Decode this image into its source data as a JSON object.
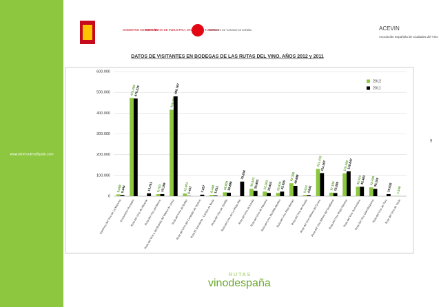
{
  "side_url": "www.wineroutesofspain.com",
  "logos": {
    "gobierno": "GOBIERNO DE ESPAÑA",
    "ministerio": "MINISTERIO DE INDUSTRIA, ENERGÍA Y TURISMO",
    "turismo": "INSTITUTO DE TURISMO DE ESPAÑA",
    "acevin": "ACEVIN",
    "acevin_sub": "Asociación Española de Ciudades del Vino",
    "rutas": "RUTAS",
    "vino": "vinodespaña"
  },
  "page_number": "9",
  "chart_data": {
    "type": "bar",
    "title": "DATOS DE VISITANTES EN BODEGAS DE LAS RUTAS DEL VINO. AÑOS 2012 y 2011",
    "categories": [
      "Caminos del Vino de La Mancha",
      "Enoturismo Penedès",
      "Ruta del Vino de Alicante",
      "Ruta del Vino del Bierzo",
      "Ruta del Vino y del Brandy del Marco de Jerez",
      "Ruta del Vino de Bullas",
      "Ruta del Vino del Condado de Huelva",
      "Ruta El Garnacha - Campo de Borja",
      "Ruta del Vino de Jumilla",
      "Ruta del Vino de La Rioja Alta",
      "Ruta del Vino de Lleida",
      "Ruta del Vino de Navarra",
      "Ruta del Vino Montilla-Moriles",
      "Ruta del Vino Rías Baixas",
      "Ruta del Vino de Rueda",
      "Ruta del Vino Ribera del Duero",
      "Ruta del Vino Ribera del Guadiana",
      "Ruta del Vino Rioja Alavesa",
      "Ruta del Vino Somontano",
      "Ruta del Vino Utiel-Requena",
      "Ruta del Vino de Toro",
      "Ruta del Vino de Yecla"
    ],
    "series": [
      {
        "name": "2012",
        "color": "#8dc63f",
        "values": [
          8668,
          473499,
          null,
          9793,
          416565,
          12901,
          null,
          6448,
          18800,
          null,
          35643,
          22263,
          15930,
          62396,
          5614,
          131470,
          17109,
          110309,
          45554,
          42490,
          null,
          1548
        ],
        "value_labels": [
          "8.668",
          "473.499",
          null,
          "9.793",
          "416.565",
          "12.901",
          null,
          "6.448",
          "18.800",
          null,
          "35.643",
          "22.263",
          "15.930",
          "62.396",
          "5.614",
          "131.470",
          "17.109",
          "110.309",
          "45.554",
          "42.490",
          null,
          "1.548"
        ]
      },
      {
        "name": "2011",
        "color": "#000000",
        "values": [
          5344,
          470276,
          13761,
          10159,
          480767,
          1437,
          7257,
          3211,
          16898,
          70258,
          25803,
          15653,
          22055,
          49898,
          4643,
          111297,
          15285,
          119847,
          45483,
          35101,
          10035,
          null
        ],
        "value_labels": [
          "5.344",
          "470.276",
          "13.761",
          "10.159",
          "480.767",
          "1.437",
          "7.257",
          "3.211",
          "16.898",
          "70.258",
          "25.803",
          "15.653",
          "22.055",
          "49.898",
          "4.643",
          "111.297",
          "15.285",
          "119.847",
          "45.483",
          "35.101",
          "10.035",
          null
        ]
      }
    ],
    "ylim": [
      0,
      600000
    ],
    "yticks": [
      0,
      {
        "value": 100000,
        "label": "100.000"
      },
      {
        "value": 200000,
        "label": "200.000"
      },
      {
        "value": 300000,
        "label": "300.000"
      },
      {
        "value": 400000,
        "label": "400.000"
      },
      {
        "value": 500000,
        "label": "500.000"
      },
      {
        "value": 600000,
        "label": "600.000"
      }
    ],
    "grid": true,
    "legend": "top-right"
  }
}
